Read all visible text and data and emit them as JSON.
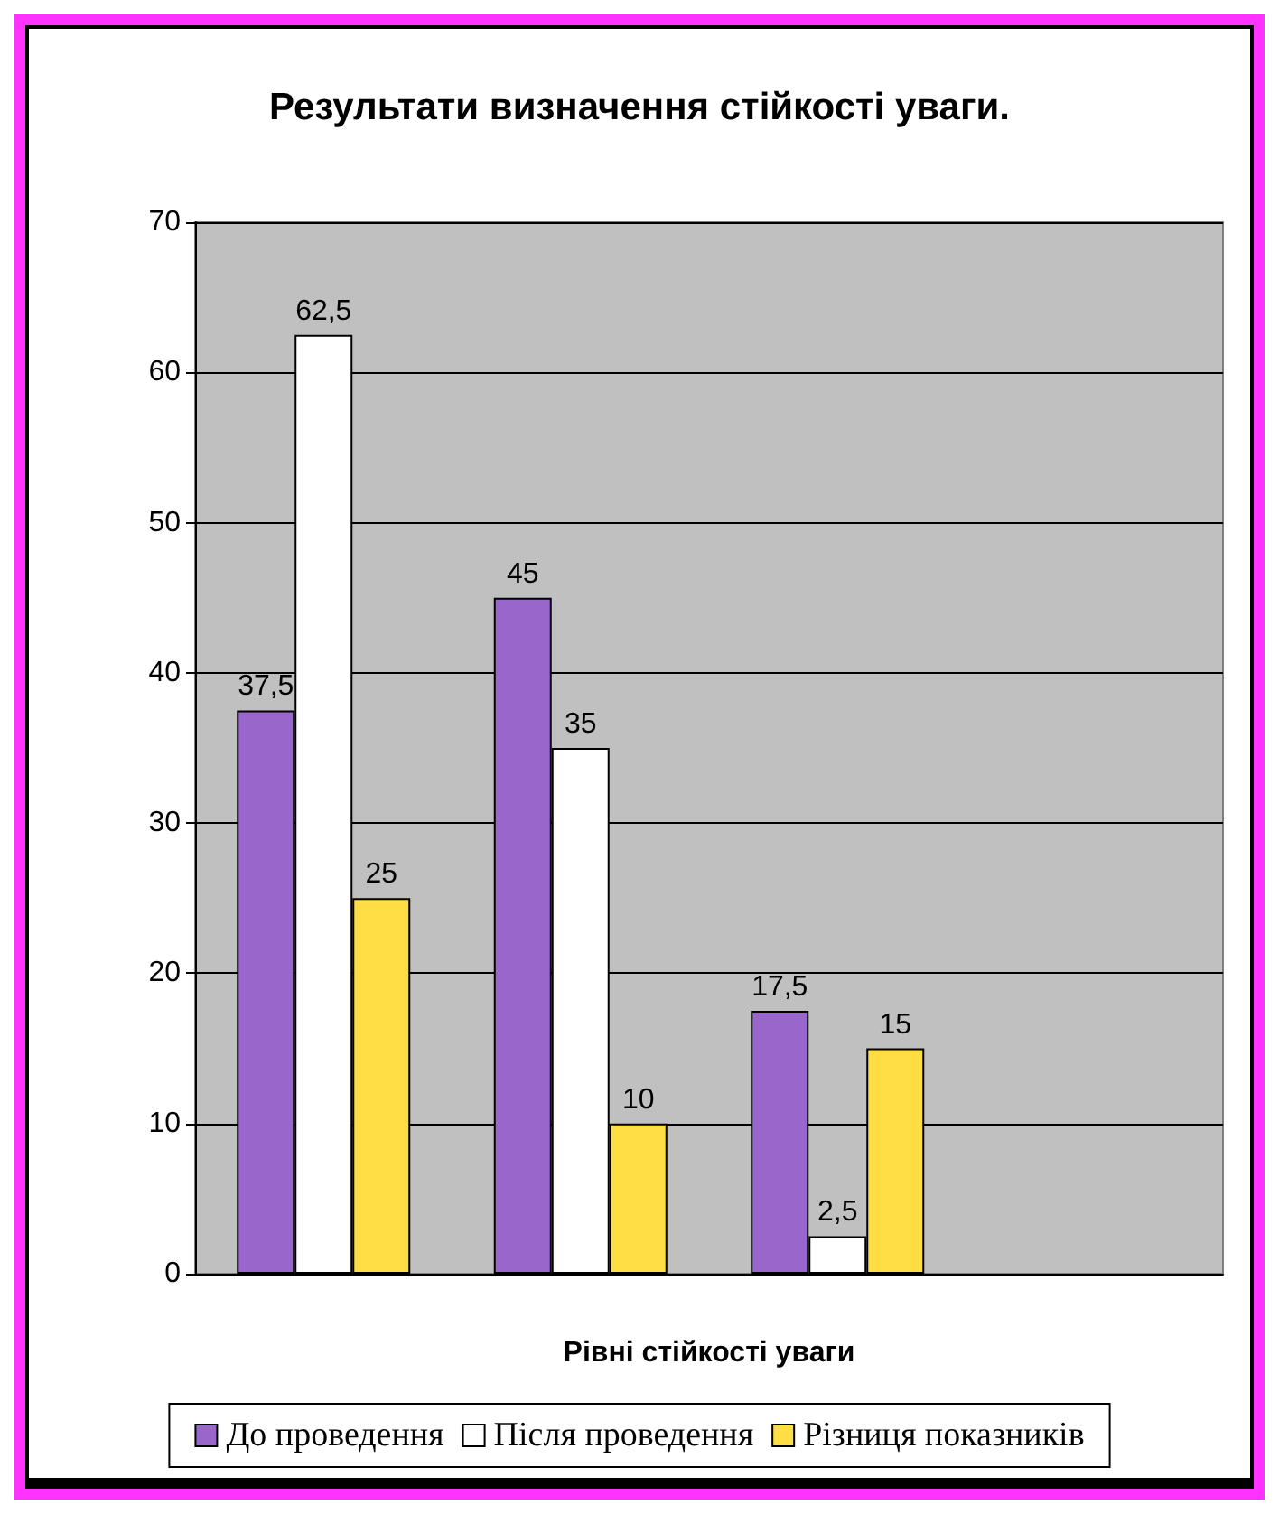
{
  "chart_data": {
    "type": "bar",
    "title": "Результати визначення стійкості уваги.",
    "xlabel": "Рівні стійкості уваги",
    "categories": [
      null,
      null,
      null,
      null
    ],
    "series": [
      {
        "name": "До проведення",
        "color": "#9966cc",
        "values": [
          37.5,
          45,
          17.5,
          null
        ],
        "value_labels": [
          "37,5",
          "45",
          "17,5",
          null
        ]
      },
      {
        "name": "Після проведення",
        "color": "#ffffff",
        "values": [
          62.5,
          35,
          2.5,
          null
        ],
        "value_labels": [
          "62,5",
          "35",
          "2,5",
          null
        ]
      },
      {
        "name": "Різниця показників",
        "color": "#ffdd44",
        "values": [
          25,
          10,
          15,
          null
        ],
        "value_labels": [
          "25",
          "10",
          "15",
          null
        ]
      }
    ],
    "ylim": [
      0,
      70
    ],
    "yticks": [
      0,
      10,
      20,
      30,
      40,
      50,
      60,
      70
    ],
    "grid": "y",
    "legend": "bottom"
  }
}
